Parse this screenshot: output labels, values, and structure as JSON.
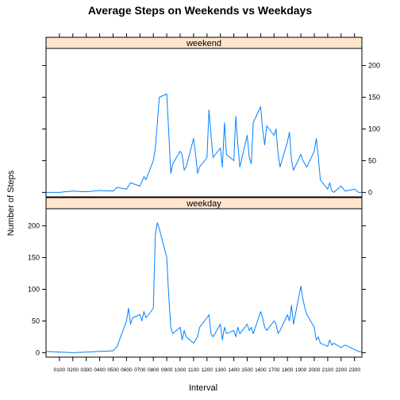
{
  "chart_data": {
    "type": "line",
    "title": "Average Steps on Weekends vs Weekdays",
    "xlabel": "Interval",
    "ylabel": "Number of Steps",
    "xlim": [
      0,
      2355
    ],
    "ylim": [
      -7,
      227
    ],
    "y_ticks": [
      0,
      50,
      100,
      150,
      200
    ],
    "x_ticks": [
      100,
      200,
      300,
      400,
      500,
      600,
      700,
      800,
      900,
      1000,
      1100,
      1200,
      1300,
      1400,
      1500,
      1600,
      1700,
      1800,
      1900,
      2000,
      2100,
      2200,
      2300
    ],
    "x_tick_labels": [
      "0100",
      "0200",
      "0300",
      "0400",
      "0500",
      "0600",
      "0700",
      "0800",
      "0900",
      "1000",
      "1100",
      "1200",
      "1300",
      "1400",
      "1500",
      "1600",
      "1700",
      "1800",
      "1900",
      "2000",
      "2100",
      "2200",
      "2300"
    ],
    "line_color": "#0080ff",
    "strip_color": "#ffe5cc",
    "panels": [
      {
        "name": "weekend",
        "x": [
          0,
          100,
          200,
          300,
          400,
          500,
          530,
          600,
          630,
          700,
          730,
          745,
          800,
          815,
          830,
          845,
          900,
          915,
          930,
          945,
          1000,
          1015,
          1030,
          1045,
          1100,
          1115,
          1130,
          1145,
          1200,
          1215,
          1230,
          1245,
          1300,
          1315,
          1330,
          1345,
          1400,
          1415,
          1430,
          1445,
          1500,
          1515,
          1530,
          1545,
          1600,
          1615,
          1630,
          1645,
          1700,
          1715,
          1730,
          1745,
          1800,
          1815,
          1830,
          1845,
          1900,
          1915,
          1930,
          1945,
          2000,
          2015,
          2030,
          2045,
          2100,
          2115,
          2130,
          2145,
          2200,
          2230,
          2300,
          2330,
          2355
        ],
        "y": [
          0,
          0,
          2,
          1,
          3,
          2,
          8,
          5,
          15,
          10,
          25,
          20,
          50,
          70,
          110,
          150,
          155,
          95,
          30,
          45,
          65,
          60,
          35,
          40,
          85,
          60,
          30,
          40,
          55,
          130,
          90,
          55,
          70,
          40,
          110,
          60,
          50,
          120,
          75,
          40,
          90,
          55,
          45,
          110,
          135,
          100,
          75,
          105,
          90,
          100,
          60,
          40,
          80,
          95,
          50,
          35,
          60,
          50,
          45,
          40,
          65,
          85,
          55,
          20,
          5,
          15,
          3,
          0,
          10,
          2,
          5,
          0,
          0
        ]
      },
      {
        "name": "weekday",
        "x": [
          0,
          100,
          200,
          300,
          400,
          500,
          530,
          600,
          615,
          630,
          645,
          700,
          715,
          730,
          745,
          800,
          815,
          830,
          845,
          900,
          915,
          930,
          945,
          1000,
          1015,
          1030,
          1045,
          1100,
          1115,
          1130,
          1145,
          1200,
          1215,
          1230,
          1245,
          1300,
          1315,
          1330,
          1345,
          1400,
          1415,
          1430,
          1445,
          1500,
          1515,
          1530,
          1545,
          1600,
          1615,
          1630,
          1645,
          1700,
          1715,
          1730,
          1745,
          1800,
          1815,
          1830,
          1845,
          1900,
          1915,
          1930,
          1945,
          2000,
          2015,
          2030,
          2045,
          2100,
          2115,
          2130,
          2145,
          2200,
          2230,
          2300,
          2330,
          2355
        ],
        "y": [
          2,
          1,
          0,
          1,
          2,
          3,
          10,
          50,
          70,
          45,
          55,
          60,
          50,
          65,
          55,
          70,
          185,
          205,
          195,
          150,
          90,
          40,
          30,
          40,
          20,
          35,
          25,
          15,
          20,
          25,
          40,
          55,
          60,
          30,
          25,
          45,
          20,
          40,
          30,
          35,
          25,
          40,
          30,
          45,
          35,
          40,
          30,
          65,
          55,
          40,
          35,
          50,
          45,
          30,
          35,
          60,
          50,
          75,
          45,
          105,
          85,
          70,
          60,
          40,
          20,
          25,
          15,
          10,
          20,
          12,
          15,
          8,
          12,
          5,
          2,
          1
        ]
      }
    ]
  }
}
